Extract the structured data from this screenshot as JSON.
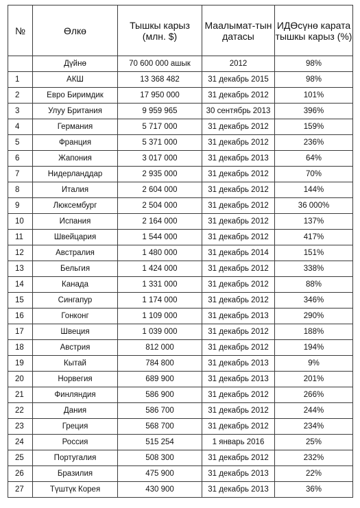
{
  "table": {
    "headers": {
      "num": "№",
      "country": "Өлкө",
      "debt": "Тышкы карыз (млн. $)",
      "date": "Маалымат-тын датасы",
      "gdp": "ИДӨсүнө карата тышкы карыз (%)"
    },
    "world": {
      "num": "",
      "country": "Дүйнө",
      "debt": "70 600 000 ашык",
      "date": "2012",
      "gdp": "98%"
    },
    "rows": [
      {
        "num": "1",
        "country": "АКШ",
        "debt": "13 368 482",
        "date": "31 декабрь 2015",
        "gdp": "98%"
      },
      {
        "num": "2",
        "country": "Евро Биримдик",
        "debt": "17 950 000",
        "date": "31 декабрь 2012",
        "gdp": "101%"
      },
      {
        "num": "3",
        "country": "Улуу Британия",
        "debt": "9 959 965",
        "date": "30 сентябрь 2013",
        "gdp": "396%"
      },
      {
        "num": "4",
        "country": "Германия",
        "debt": "5 717 000",
        "date": "31 декабрь 2012",
        "gdp": "159%"
      },
      {
        "num": "5",
        "country": "Франция",
        "debt": "5 371 000",
        "date": "31 декабрь 2012",
        "gdp": "236%"
      },
      {
        "num": "6",
        "country": "Жапония",
        "debt": "3 017 000",
        "date": "31 декабрь 2013",
        "gdp": "64%"
      },
      {
        "num": "7",
        "country": "Нидерланддар",
        "debt": "2 935 000",
        "date": "31 декабрь 2012",
        "gdp": "70%"
      },
      {
        "num": "8",
        "country": "Италия",
        "debt": "2 604 000",
        "date": "31 декабрь 2012",
        "gdp": "144%"
      },
      {
        "num": "9",
        "country": "Люксембург",
        "debt": "2 504 000",
        "date": "31 декабрь 2012",
        "gdp": "36 000%"
      },
      {
        "num": "10",
        "country": "Испания",
        "debt": "2 164 000",
        "date": "31 декабрь 2012",
        "gdp": "137%"
      },
      {
        "num": "11",
        "country": "Швейцария",
        "debt": "1 544 000",
        "date": "31 декабрь 2012",
        "gdp": "417%"
      },
      {
        "num": "12",
        "country": "Австралия",
        "debt": "1 480 000",
        "date": "31 декабрь 2014",
        "gdp": "151%"
      },
      {
        "num": "13",
        "country": "Бельгия",
        "debt": "1 424 000",
        "date": "31 декабрь 2012",
        "gdp": "338%"
      },
      {
        "num": "14",
        "country": "Канада",
        "debt": "1 331 000",
        "date": "31 декабрь 2012",
        "gdp": "88%"
      },
      {
        "num": "15",
        "country": "Сингапур",
        "debt": "1 174 000",
        "date": "31 декабрь 2012",
        "gdp": "346%"
      },
      {
        "num": "16",
        "country": "Гонконг",
        "debt": "1 109 000",
        "date": "31 декабрь 2013",
        "gdp": "290%"
      },
      {
        "num": "17",
        "country": "Швеция",
        "debt": "1 039 000",
        "date": "31 декабрь 2012",
        "gdp": "188%"
      },
      {
        "num": "18",
        "country": "Австрия",
        "debt": "812 000",
        "date": "31 декабрь 2012",
        "gdp": "194%"
      },
      {
        "num": "19",
        "country": "Кытай",
        "debt": "784 800",
        "date": "31 декабрь 2013",
        "gdp": "9%"
      },
      {
        "num": "20",
        "country": "Норвегия",
        "debt": "689 900",
        "date": "31 декабрь 2013",
        "gdp": "201%"
      },
      {
        "num": "21",
        "country": "Финляндия",
        "debt": "586 900",
        "date": "31 декабрь 2012",
        "gdp": "266%"
      },
      {
        "num": "22",
        "country": "Дания",
        "debt": "586 700",
        "date": "31 декабрь 2012",
        "gdp": "244%"
      },
      {
        "num": "23",
        "country": "Греция",
        "debt": "568 700",
        "date": "31 декабрь 2012",
        "gdp": "234%"
      },
      {
        "num": "24",
        "country": "Россия",
        "debt": "515 254",
        "date": "1 январь 2016",
        "gdp": "25%"
      },
      {
        "num": "25",
        "country": "Португалия",
        "debt": "508 300",
        "date": "31 декабрь 2012",
        "gdp": "232%"
      },
      {
        "num": "26",
        "country": "Бразилия",
        "debt": "475 900",
        "date": "31 декабрь 2013",
        "gdp": "22%"
      },
      {
        "num": "27",
        "country": "Түштүк Корея",
        "debt": "430 900",
        "date": "31 декабрь 2013",
        "gdp": "36%"
      }
    ]
  }
}
